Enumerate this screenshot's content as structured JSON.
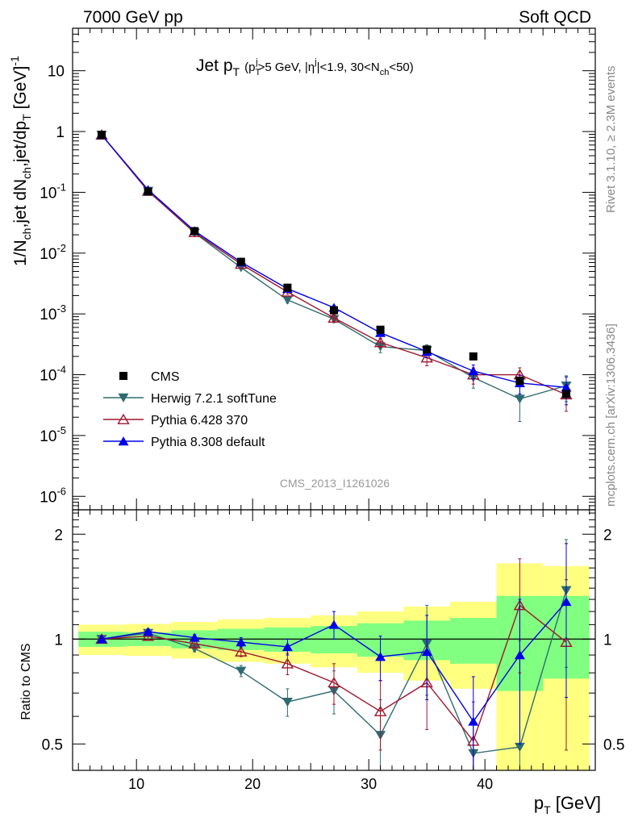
{
  "header": {
    "left": "7000 GeV pp",
    "right": "Soft QCD"
  },
  "side_labels": {
    "rivet": "Rivet 3.1.10, ≥ 2.3M events",
    "mcplots": "mcplots.cern.ch [arXiv:1306.3436]"
  },
  "watermark": "CMS_2013_I1261026",
  "colors": {
    "cms": "#000000",
    "herwig": "#2e6b70",
    "pythia6": "#a0162e",
    "pythia8": "#0000e6",
    "band_outer": "#ffff80",
    "band_inner": "#80ff80"
  },
  "chart_data": [
    {
      "type": "scatter",
      "panel": "main",
      "title": "Jet p_T (p_T^j>5 GeV, |η^j|<1.9, 30<N_ch<50)",
      "title_parts": {
        "main": "Jet p",
        "main_sub": "T",
        "small": "(p",
        "small_sub": "T",
        "small_sup": "j",
        "cond1": ">5 GeV, |η",
        "cond1_sup": "j",
        "cond2": "|<1.9, 30<N",
        "cond2_sub": "ch",
        "cond3": "<50)"
      },
      "ylabel": "1/N_ch,jet dN_ch,jet/dp_T [GeV]^-1",
      "ylabel_parts": {
        "a": "1/N",
        "a_sub": "ch",
        "b": ",jet dN",
        "b_sub": "ch",
        "c": ",jet/dp",
        "c_sub": "T",
        "d": " [GeV]",
        "d_sup": "-1"
      },
      "log_y": true,
      "xlim": [
        4.5,
        49.5
      ],
      "ylim": [
        6e-07,
        50
      ],
      "y_ticks": [
        {
          "value": 1e-06,
          "base": "10",
          "exp": "-6"
        },
        {
          "value": 1e-05,
          "base": "10",
          "exp": "-5"
        },
        {
          "value": 0.0001,
          "base": "10",
          "exp": "-4"
        },
        {
          "value": 0.001,
          "base": "10",
          "exp": "-3"
        },
        {
          "value": 0.01,
          "base": "10",
          "exp": "-2"
        },
        {
          "value": 0.1,
          "base": "10",
          "exp": "-1"
        },
        {
          "value": 1,
          "base": "1",
          "exp": ""
        },
        {
          "value": 10,
          "base": "10",
          "exp": ""
        }
      ],
      "legend_position": "middle-left",
      "series": [
        {
          "name": "CMS",
          "marker": "square",
          "color": "#000000",
          "x": [
            7,
            11,
            15,
            19,
            23,
            27,
            31,
            35,
            39,
            43,
            47
          ],
          "y": [
            0.88,
            0.103,
            0.023,
            0.0072,
            0.0027,
            0.00115,
            0.00055,
            0.00026,
            0.0002,
            8e-05,
            4.8e-05
          ]
        },
        {
          "name": "Herwig 7.2.1 softTune",
          "marker": "triangle-down",
          "color": "#2e6b70",
          "x": [
            7,
            11,
            15,
            19,
            23,
            27,
            31,
            35,
            39,
            43,
            47
          ],
          "y": [
            0.88,
            0.105,
            0.0215,
            0.0058,
            0.0017,
            0.00082,
            0.00029,
            0.00025,
            9e-05,
            4e-05,
            6.6e-05
          ],
          "err": [
            0.03,
            0.004,
            0.001,
            0.0004,
            0.0002,
            0.0001,
            6e-05,
            6e-05,
            3e-05,
            2.3e-05,
            3e-05
          ]
        },
        {
          "name": "Pythia 6.428 370",
          "marker": "triangle-open",
          "color": "#a0162e",
          "x": [
            7,
            11,
            15,
            19,
            23,
            27,
            31,
            35,
            39,
            43,
            47
          ],
          "y": [
            0.88,
            0.105,
            0.022,
            0.0066,
            0.0023,
            0.00086,
            0.00034,
            0.00019,
            0.0001,
            0.0001,
            4.7e-05
          ],
          "err": [
            0.03,
            0.004,
            0.001,
            0.0004,
            0.0002,
            0.0001,
            6e-05,
            5e-05,
            3e-05,
            3e-05,
            2.2e-05
          ]
        },
        {
          "name": "Pythia 8.308 default",
          "marker": "triangle",
          "color": "#0000e6",
          "x": [
            7,
            11,
            15,
            19,
            23,
            27,
            31,
            35,
            39,
            43,
            47
          ],
          "y": [
            0.88,
            0.11,
            0.0232,
            0.0071,
            0.0026,
            0.00127,
            0.00049,
            0.00024,
            0.000115,
            7.3e-05,
            6.2e-05
          ],
          "err": [
            0.03,
            0.004,
            0.001,
            0.0004,
            0.0002,
            0.0001,
            6e-05,
            5e-05,
            3e-05,
            2.5e-05,
            3e-05
          ]
        }
      ]
    },
    {
      "type": "scatter",
      "panel": "ratio",
      "ylabel": "Ratio to CMS",
      "xlabel": "p_T [GeV]",
      "xlabel_parts": {
        "a": "p",
        "a_sub": "T",
        "b": " [GeV]"
      },
      "log_y": true,
      "xlim": [
        4.5,
        49.5
      ],
      "ylim": [
        0.42,
        2.35
      ],
      "y_ticks": [
        {
          "value": 0.5,
          "label": "0.5"
        },
        {
          "value": 1,
          "label": "1"
        },
        {
          "value": 2,
          "label": "2"
        }
      ],
      "x_ticks": [
        10,
        20,
        30,
        40
      ],
      "bands": {
        "bin_edges": [
          5,
          9,
          13,
          17,
          21,
          25,
          29,
          33,
          37,
          41,
          45,
          49
        ],
        "inner": [
          [
            0.95,
            1.05
          ],
          [
            0.955,
            1.045
          ],
          [
            0.94,
            1.06
          ],
          [
            0.93,
            1.07
          ],
          [
            0.92,
            1.08
          ],
          [
            0.91,
            1.09
          ],
          [
            0.89,
            1.11
          ],
          [
            0.87,
            1.13
          ],
          [
            0.85,
            1.15
          ],
          [
            0.71,
            1.33
          ],
          [
            0.77,
            1.33
          ]
        ],
        "outer": [
          [
            0.9,
            1.1
          ],
          [
            0.895,
            1.105
          ],
          [
            0.88,
            1.12
          ],
          [
            0.86,
            1.14
          ],
          [
            0.85,
            1.15
          ],
          [
            0.83,
            1.17
          ],
          [
            0.8,
            1.2
          ],
          [
            0.76,
            1.24
          ],
          [
            0.72,
            1.28
          ],
          [
            0.4,
            1.65
          ],
          [
            0.4,
            1.62
          ]
        ]
      },
      "series": [
        {
          "name": "Herwig 7.2.1 softTune",
          "marker": "triangle-down",
          "color": "#2e6b70",
          "x": [
            7,
            11,
            15,
            19,
            23,
            27,
            31,
            35,
            39,
            43,
            47
          ],
          "y": [
            1.0,
            1.04,
            0.94,
            0.81,
            0.66,
            0.71,
            0.53,
            0.97,
            0.47,
            0.49,
            1.38
          ],
          "err": [
            0.02,
            0.02,
            0.02,
            0.03,
            0.06,
            0.1,
            0.14,
            0.28,
            0.12,
            0.5,
            0.55
          ]
        },
        {
          "name": "Pythia 6.428 370",
          "marker": "triangle-open",
          "color": "#a0162e",
          "x": [
            7,
            11,
            15,
            19,
            23,
            27,
            31,
            35,
            39,
            43,
            47
          ],
          "y": [
            1.0,
            1.02,
            0.97,
            0.92,
            0.85,
            0.75,
            0.62,
            0.75,
            0.51,
            1.25,
            0.98
          ],
          "err": [
            0.02,
            0.02,
            0.02,
            0.03,
            0.06,
            0.1,
            0.14,
            0.2,
            0.15,
            0.45,
            0.5
          ]
        },
        {
          "name": "Pythia 8.308 default",
          "marker": "triangle",
          "color": "#0000e6",
          "x": [
            7,
            11,
            15,
            19,
            23,
            27,
            31,
            35,
            39,
            43,
            47
          ],
          "y": [
            1.0,
            1.05,
            1.01,
            0.98,
            0.95,
            1.1,
            0.89,
            0.92,
            0.58,
            0.9,
            1.28
          ],
          "err": [
            0.02,
            0.02,
            0.02,
            0.03,
            0.05,
            0.1,
            0.13,
            0.25,
            0.2,
            0.4,
            0.6
          ]
        }
      ]
    }
  ]
}
